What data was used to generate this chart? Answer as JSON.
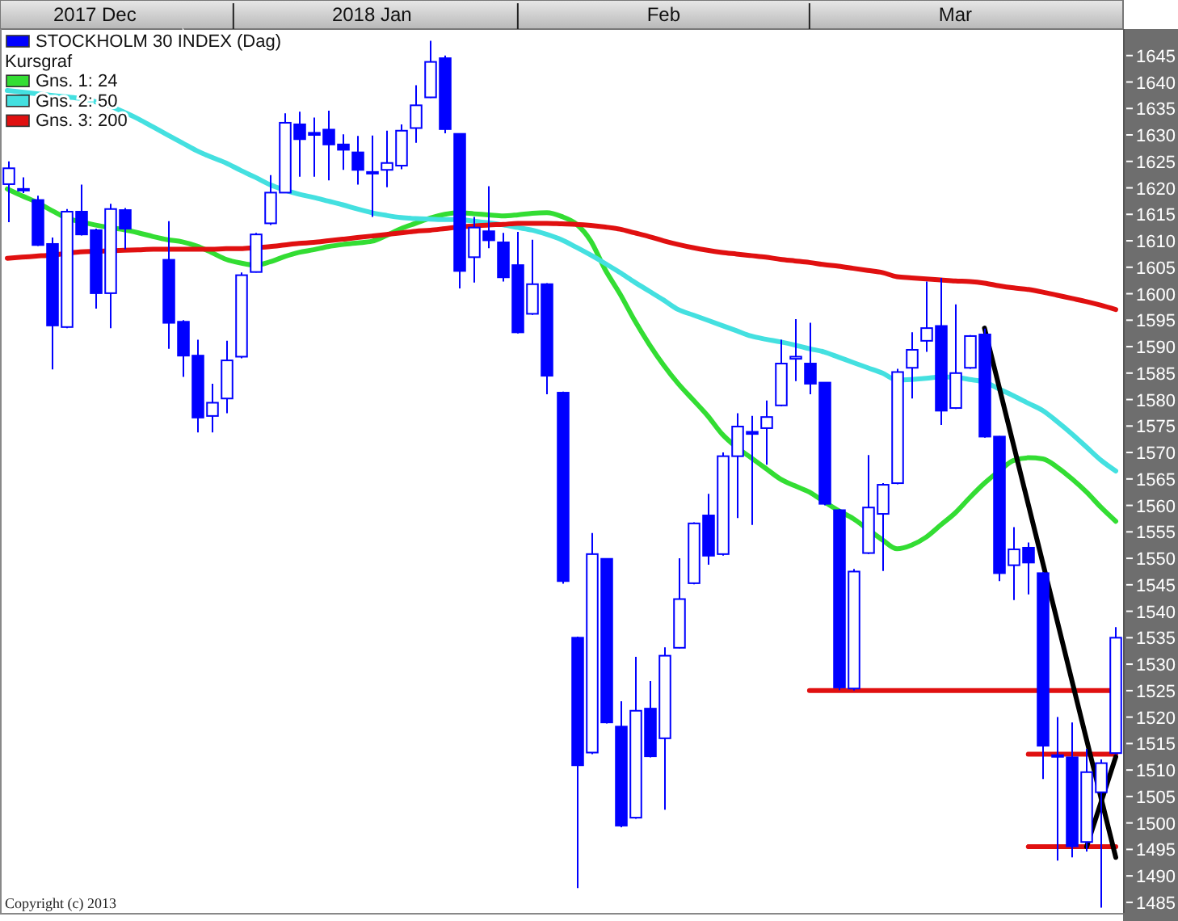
{
  "chart_data": {
    "type": "candlestick",
    "legend": "top left",
    "legend_title": "Kursgraf",
    "grid": false,
    "categories": [
      null,
      null,
      null,
      null,
      null,
      null,
      "2017 Dec",
      null,
      null,
      null,
      null,
      null,
      null,
      null,
      null,
      null,
      null,
      null,
      null,
      null,
      null,
      null,
      null,
      null,
      null,
      "2018 Jan",
      null,
      null,
      null,
      null,
      null,
      null,
      null,
      null,
      null,
      null,
      null,
      null,
      null,
      null,
      null,
      null,
      null,
      null,
      null,
      "Feb",
      null,
      null,
      null,
      null,
      null,
      null,
      null,
      null,
      null,
      null,
      null,
      null,
      null,
      null,
      null,
      null,
      null,
      null,
      null,
      "Mar",
      null,
      null,
      null,
      null,
      null,
      null,
      null,
      null,
      null,
      null,
      null
    ],
    "ylim": [
      1483,
      1650
    ],
    "yticks": [
      1485,
      1490,
      1495,
      1500,
      1505,
      1510,
      1515,
      1520,
      1525,
      1530,
      1535,
      1540,
      1545,
      1550,
      1555,
      1560,
      1565,
      1570,
      1575,
      1580,
      1585,
      1590,
      1595,
      1600,
      1605,
      1610,
      1615,
      1620,
      1625,
      1630,
      1635,
      1640,
      1645
    ],
    "annotations": [
      "Copyright (c) 2013"
    ],
    "series": [
      {
        "name": "STOCKHOLM 30 INDEX (Dag)",
        "color": "#0000ff",
        "ohlc": [
          [
            1620.7,
            1625,
            1613.5,
            1623.7
          ],
          [
            1619.5,
            1622,
            1619,
            1619.8
          ],
          [
            1617.7,
            1618.5,
            1609,
            1609.2
          ],
          [
            1609.4,
            1610.6,
            1585.7,
            1594
          ],
          [
            1593.7,
            1616,
            1593.5,
            1615.5
          ],
          [
            1615.5,
            1620.6,
            1611,
            1611.2
          ],
          [
            1612,
            1612.3,
            1597.2,
            1600.1
          ],
          [
            1600.1,
            1617,
            1593.5,
            1616
          ],
          [
            1615.8,
            1616.2,
            1608.4,
            1612.3
          ],
          null,
          null,
          [
            1606.4,
            1613.7,
            1589.6,
            1594.5
          ],
          [
            1594.7,
            1595,
            1584.3,
            1588.3
          ],
          [
            1588.3,
            1591.3,
            1573.8,
            1576.6
          ],
          [
            1576.9,
            1583,
            1573.8,
            1579.4
          ],
          [
            1580.2,
            1591.1,
            1577.4,
            1587.4
          ],
          [
            1588.1,
            1604,
            1587.8,
            1603.5
          ],
          [
            1604.1,
            1611.5,
            1604,
            1611.2
          ],
          [
            1613.3,
            1622.4,
            1613,
            1619.1
          ],
          [
            1619.1,
            1634.1,
            1619,
            1632.3
          ],
          [
            1632,
            1634.4,
            1622.1,
            1629.2
          ],
          [
            1630.4,
            1633.3,
            1622.1,
            1630
          ],
          [
            1631,
            1634.6,
            1621.4,
            1628.2
          ],
          [
            1628.2,
            1630.1,
            1623.4,
            1627.2
          ],
          [
            1626.7,
            1629.8,
            1620.6,
            1623.4
          ],
          [
            1623,
            1629.9,
            1614.5,
            1622.7
          ],
          [
            1623.4,
            1630.8,
            1620.1,
            1624.7
          ],
          [
            1624.2,
            1632,
            1623.5,
            1630.8
          ],
          [
            1631.3,
            1639.4,
            1628.5,
            1635.6
          ],
          [
            1637.1,
            1647.8,
            1637,
            1643.8
          ],
          [
            1644.5,
            1645,
            1630.3,
            1631.1
          ],
          [
            1630.2,
            1630.3,
            1601,
            1604.3
          ],
          [
            1606.9,
            1614.5,
            1602.1,
            1612.5
          ],
          [
            1611.8,
            1620.3,
            1608.6,
            1610.1
          ],
          [
            1609.7,
            1611.5,
            1602.3,
            1603.1
          ],
          [
            1605.4,
            1611.7,
            1592.5,
            1592.7
          ],
          [
            1596.2,
            1610.2,
            1596,
            1601.8
          ],
          [
            1601.8,
            1602,
            1581,
            1584.5
          ],
          [
            1581.3,
            1581.5,
            1545.2,
            1545.7
          ],
          [
            1535,
            1535.2,
            1487.7,
            1510.9
          ],
          [
            1513.3,
            1554.8,
            1513,
            1550.8
          ],
          [
            1549.9,
            1550,
            1518.8,
            1519
          ],
          [
            1518.2,
            1523,
            1499.2,
            1499.5
          ],
          [
            1501,
            1531.4,
            1500.8,
            1521.2
          ],
          [
            1521.6,
            1526.8,
            1512.4,
            1512.6
          ],
          [
            1516,
            1533.2,
            1502.5,
            1531.6
          ],
          [
            1533.1,
            1550,
            1533,
            1542.3
          ],
          [
            1545.3,
            1556.8,
            1545.1,
            1556.6
          ],
          [
            1558.1,
            1562.2,
            1548.8,
            1550.5
          ],
          [
            1550.8,
            1570,
            1550.5,
            1569.3
          ],
          [
            1569.3,
            1577.4,
            1557.6,
            1574.9
          ],
          [
            1573.9,
            1576.9,
            1556.3,
            1573.5
          ],
          [
            1574.6,
            1579.8,
            1567.7,
            1576.7
          ],
          [
            1578.9,
            1591.3,
            1578.7,
            1586.8
          ],
          [
            1587.7,
            1595.2,
            1583.5,
            1588.1
          ],
          [
            1586.8,
            1594.5,
            1581,
            1583
          ],
          [
            1583.2,
            1583.3,
            1560,
            1560.3
          ],
          [
            1559.1,
            1559.3,
            1525.1,
            1525.6
          ],
          [
            1525.4,
            1548,
            1525,
            1547.5
          ],
          [
            1551,
            1569.5,
            1550.8,
            1559.6
          ],
          [
            1558.4,
            1564.2,
            1547.6,
            1563.9
          ],
          [
            1564.2,
            1585.8,
            1564,
            1585.2
          ],
          [
            1586,
            1592.7,
            1580.2,
            1589.4
          ],
          [
            1591.1,
            1602.3,
            1589,
            1593.5
          ],
          [
            1593.9,
            1603,
            1575.2,
            1577.9
          ],
          [
            1578.4,
            1598,
            1578.2,
            1585
          ],
          [
            1586,
            1592.2,
            1585.8,
            1592
          ],
          [
            1592.3,
            1593.4,
            1572.8,
            1573
          ],
          [
            1573,
            1573.1,
            1545.7,
            1547.2
          ],
          [
            1548.7,
            1555.9,
            1542.1,
            1551.7
          ],
          [
            1552,
            1553,
            1543.2,
            1549.2
          ],
          [
            1547.2,
            1547.4,
            1508.3,
            1514.6
          ],
          [
            1512.8,
            1520,
            1492.9,
            1512.5
          ],
          [
            1512.4,
            1519,
            1493.5,
            1495.6
          ],
          [
            1496.4,
            1514,
            1494.6,
            1509.6
          ],
          [
            1505.8,
            1512,
            1484,
            1511.3
          ],
          [
            1513.2,
            1537,
            1513,
            1535
          ]
        ]
      },
      {
        "type": "line",
        "name": "Gns. 1: 24",
        "color": "#33dd33",
        "values": [
          1619.8,
          1618.5,
          1617.3,
          1615.8,
          1614.4,
          1613.6,
          1613,
          1612.5,
          1612.1,
          1611.5,
          1610.8,
          1610.2,
          1609.8,
          1609,
          1607.8,
          1606.5,
          1605.8,
          1605.4,
          1606,
          1607,
          1607.8,
          1608.3,
          1608.9,
          1609.3,
          1609.6,
          1609.9,
          1611,
          1612.3,
          1613.3,
          1614.3,
          1615,
          1615.3,
          1615.1,
          1614.9,
          1614.7,
          1614.9,
          1615.2,
          1615.3,
          1614.6,
          1613.2,
          1610,
          1604.5,
          1600,
          1595,
          1590.5,
          1586.5,
          1583,
          1580,
          1577,
          1573.5,
          1571,
          1569,
          1567,
          1565,
          1563.7,
          1562.5,
          1560.7,
          1559,
          1557.5,
          1555.5,
          1553.5,
          1551.8,
          1552.5,
          1554,
          1556.3,
          1558.6,
          1561.5,
          1564.2,
          1566.5,
          1568.5,
          1569,
          1568.8,
          1567.2,
          1565,
          1562.5,
          1559.6,
          1557
        ]
      },
      {
        "type": "line",
        "name": "Gns. 2: 50",
        "color": "#44e0e0",
        "values": [
          1638.4,
          1638.1,
          1637.8,
          1637.5,
          1637.2,
          1636.9,
          1636.3,
          1635.5,
          1634.3,
          1633,
          1631.5,
          1630,
          1628.5,
          1627,
          1625.8,
          1624.7,
          1623.3,
          1622,
          1620.6,
          1619.6,
          1618.8,
          1618.2,
          1617.5,
          1616.8,
          1616,
          1615.3,
          1614.8,
          1614.4,
          1614.2,
          1614.1,
          1614,
          1614,
          1613.7,
          1613.4,
          1613,
          1612.5,
          1612,
          1611.2,
          1610.2,
          1608.8,
          1607.3,
          1605.7,
          1604,
          1602.2,
          1600.5,
          1598.8,
          1597,
          1596,
          1595,
          1594,
          1593,
          1592,
          1591.4,
          1590.9,
          1590.3,
          1589.6,
          1589,
          1588,
          1587,
          1586,
          1585,
          1583.7,
          1583.8,
          1584,
          1584.3,
          1584.2,
          1583.8,
          1583.3,
          1582,
          1580.7,
          1579.3,
          1577.9,
          1575.8,
          1573.5,
          1571,
          1568.5,
          1566.5
        ]
      },
      {
        "type": "line",
        "name": "Gns. 3: 200",
        "color": "#e01010",
        "values": [
          1606.7,
          1606.9,
          1607.1,
          1607.3,
          1607.6,
          1607.9,
          1608,
          1608.1,
          1608.2,
          1608.3,
          1608.4,
          1608.4,
          1608.4,
          1608.4,
          1608.4,
          1608.5,
          1608.5,
          1608.7,
          1608.9,
          1609.2,
          1609.5,
          1609.7,
          1610,
          1610.3,
          1610.6,
          1610.9,
          1611.2,
          1611.5,
          1611.8,
          1612,
          1612.3,
          1612.6,
          1612.8,
          1613,
          1613.1,
          1613.3,
          1613.3,
          1613.3,
          1613.2,
          1613.1,
          1612.9,
          1612.6,
          1612.2,
          1611.5,
          1610.8,
          1610,
          1609.3,
          1608.7,
          1608.2,
          1607.8,
          1607.5,
          1607.2,
          1606.9,
          1606.5,
          1606.2,
          1605.9,
          1605.5,
          1605.2,
          1604.8,
          1604.4,
          1604,
          1603.2,
          1603,
          1602.8,
          1602.6,
          1602.4,
          1602.3,
          1602,
          1601.5,
          1601.1,
          1600.8,
          1600.3,
          1599.7,
          1599.1,
          1598.5,
          1597.8,
          1597
        ]
      },
      {
        "type": "line",
        "color": "#e01010",
        "values": [
          null,
          null,
          null,
          null,
          null,
          null,
          null,
          null,
          null,
          null,
          null,
          null,
          null,
          null,
          null,
          null,
          null,
          null,
          null,
          null,
          null,
          null,
          null,
          null,
          null,
          null,
          null,
          null,
          null,
          null,
          null,
          null,
          null,
          null,
          null,
          null,
          null,
          null,
          null,
          null,
          null,
          null,
          null,
          null,
          null,
          null,
          null,
          null,
          null,
          null,
          null,
          null,
          null,
          null,
          null,
          1525,
          1525,
          1525,
          1525,
          1525,
          1525,
          1525,
          1525,
          1525,
          1525,
          1525,
          1525,
          1525,
          1525,
          1525,
          1525,
          1525,
          1525,
          1525,
          1525,
          1525,
          1525
        ]
      },
      {
        "type": "line",
        "color": "#e01010",
        "values": [
          null,
          null,
          null,
          null,
          null,
          null,
          null,
          null,
          null,
          null,
          null,
          null,
          null,
          null,
          null,
          null,
          null,
          null,
          null,
          null,
          null,
          null,
          null,
          null,
          null,
          null,
          null,
          null,
          null,
          null,
          null,
          null,
          null,
          null,
          null,
          null,
          null,
          null,
          null,
          null,
          null,
          null,
          null,
          null,
          null,
          null,
          null,
          null,
          null,
          null,
          null,
          null,
          null,
          null,
          null,
          null,
          null,
          null,
          null,
          null,
          null,
          null,
          null,
          null,
          null,
          null,
          null,
          null,
          null,
          null,
          1513,
          1513,
          1513,
          1513,
          1513,
          1513,
          1513
        ]
      },
      {
        "type": "line",
        "color": "#e01010",
        "values": [
          null,
          null,
          null,
          null,
          null,
          null,
          null,
          null,
          null,
          null,
          null,
          null,
          null,
          null,
          null,
          null,
          null,
          null,
          null,
          null,
          null,
          null,
          null,
          null,
          null,
          null,
          null,
          null,
          null,
          null,
          null,
          null,
          null,
          null,
          null,
          null,
          null,
          null,
          null,
          null,
          null,
          null,
          null,
          null,
          null,
          null,
          null,
          null,
          null,
          null,
          null,
          null,
          null,
          null,
          null,
          null,
          null,
          null,
          null,
          null,
          null,
          null,
          null,
          null,
          null,
          null,
          null,
          null,
          null,
          null,
          1495.5,
          1495.5,
          1495.5,
          1495.5,
          1495.5,
          1495.5,
          1495.5
        ]
      },
      {
        "type": "line",
        "color": "#000000",
        "values": [
          null,
          null,
          null,
          null,
          null,
          null,
          null,
          null,
          null,
          null,
          null,
          null,
          null,
          null,
          null,
          null,
          null,
          null,
          null,
          null,
          null,
          null,
          null,
          null,
          null,
          null,
          null,
          null,
          null,
          null,
          null,
          null,
          null,
          null,
          null,
          null,
          null,
          null,
          null,
          null,
          null,
          null,
          null,
          null,
          null,
          null,
          null,
          null,
          null,
          null,
          null,
          null,
          null,
          null,
          null,
          null,
          null,
          null,
          null,
          null,
          null,
          null,
          null,
          null,
          null,
          null,
          null,
          1593.5,
          1582.4,
          1571.3,
          1560.2,
          1549.1,
          1538,
          1526.8,
          1515.7,
          1504.6,
          1493.5
        ]
      },
      {
        "type": "line",
        "color": "#000000",
        "values": [
          null,
          null,
          null,
          null,
          null,
          null,
          null,
          null,
          null,
          null,
          null,
          null,
          null,
          null,
          null,
          null,
          null,
          null,
          null,
          null,
          null,
          null,
          null,
          null,
          null,
          null,
          null,
          null,
          null,
          null,
          null,
          null,
          null,
          null,
          null,
          null,
          null,
          null,
          null,
          null,
          null,
          null,
          null,
          null,
          null,
          null,
          null,
          null,
          null,
          null,
          null,
          null,
          null,
          null,
          null,
          null,
          null,
          null,
          null,
          null,
          null,
          null,
          null,
          null,
          null,
          null,
          null,
          null,
          null,
          null,
          null,
          null,
          null,
          null,
          1495.5,
          1504,
          1512.5
        ]
      }
    ]
  }
}
